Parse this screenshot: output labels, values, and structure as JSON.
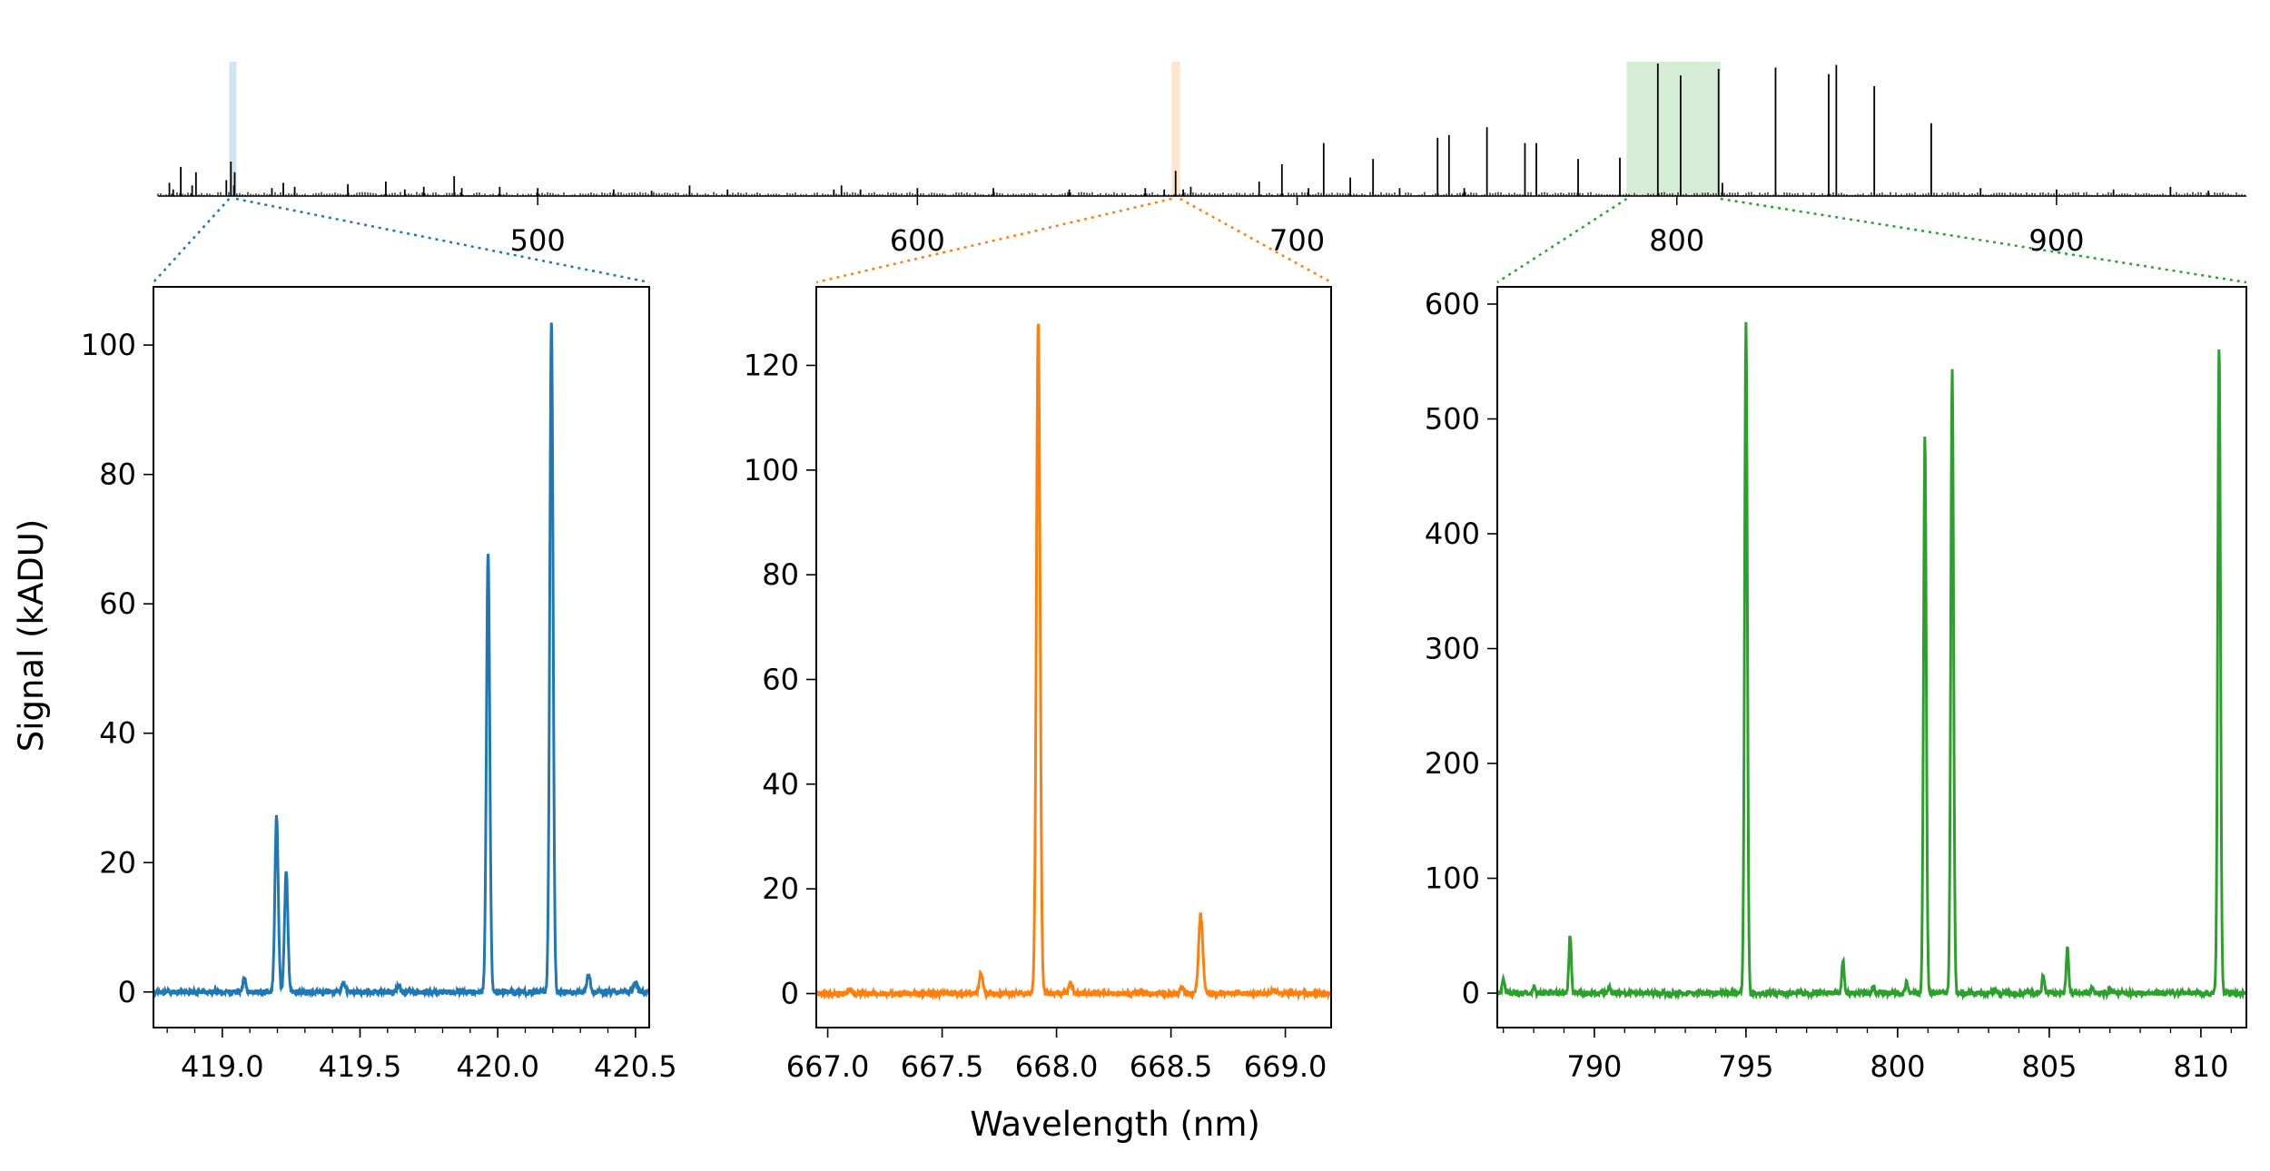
{
  "chart_data": [
    {
      "type": "line",
      "panel": "overview",
      "xlim": [
        400,
        950
      ],
      "x_ticks": [
        500,
        600,
        700,
        800,
        900
      ],
      "highlight_regions": [
        {
          "x": [
            418.75,
            420.55
          ],
          "color": "#1f77b4"
        },
        {
          "x": [
            666.95,
            669.2
          ],
          "color": "#ff7f0e"
        },
        {
          "x": [
            786.8,
            811.5
          ],
          "color": "#2ca02c"
        }
      ],
      "line_color": "#000000",
      "lines": [
        [
          403,
          10
        ],
        [
          404,
          5
        ],
        [
          406,
          22
        ],
        [
          409,
          8
        ],
        [
          410,
          18
        ],
        [
          418,
          12
        ],
        [
          419.2,
          26
        ],
        [
          420,
          8
        ],
        [
          420.2,
          18
        ],
        [
          430,
          6
        ],
        [
          433,
          10
        ],
        [
          436,
          7
        ],
        [
          450,
          9
        ],
        [
          460,
          11
        ],
        [
          465,
          5
        ],
        [
          470,
          7
        ],
        [
          478,
          15
        ],
        [
          480,
          6
        ],
        [
          490,
          7
        ],
        [
          500,
          6
        ],
        [
          520,
          5
        ],
        [
          530,
          4
        ],
        [
          540,
          8
        ],
        [
          550,
          5
        ],
        [
          578,
          5
        ],
        [
          580,
          8
        ],
        [
          585,
          5
        ],
        [
          600,
          6
        ],
        [
          620,
          6
        ],
        [
          640,
          5
        ],
        [
          660,
          6
        ],
        [
          665,
          5
        ],
        [
          668,
          19
        ],
        [
          670,
          5
        ],
        [
          672,
          7
        ],
        [
          690,
          11
        ],
        [
          696,
          24
        ],
        [
          703,
          6
        ],
        [
          707,
          40
        ],
        [
          714,
          14
        ],
        [
          720,
          28
        ],
        [
          727,
          6
        ],
        [
          737,
          44
        ],
        [
          740,
          46
        ],
        [
          744,
          6
        ],
        [
          750,
          52
        ],
        [
          760,
          40
        ],
        [
          763,
          40
        ],
        [
          774,
          28
        ],
        [
          785,
          29
        ],
        [
          795,
          100
        ],
        [
          801,
          91
        ],
        [
          811,
          96
        ],
        [
          812,
          10
        ],
        [
          826,
          97
        ],
        [
          840,
          92
        ],
        [
          842,
          99
        ],
        [
          852,
          83
        ],
        [
          867,
          55
        ],
        [
          880,
          6
        ],
        [
          900,
          5
        ],
        [
          915,
          5
        ],
        [
          930,
          7
        ],
        [
          940,
          4
        ]
      ]
    },
    {
      "type": "line",
      "panel": "zoom-1",
      "color": "#1f77b4",
      "xlim": [
        418.75,
        420.55
      ],
      "ylim": [
        -5.5,
        109
      ],
      "x_ticks": [
        "419.0",
        "419.5",
        "420.0",
        "420.5"
      ],
      "y_ticks": [
        0,
        20,
        40,
        60,
        80,
        100
      ],
      "ylabel": "Signal (kADU)",
      "peaks": [
        {
          "x": 419.08,
          "y": 2.0,
          "w": 0.006
        },
        {
          "x": 419.197,
          "y": 27.2,
          "w": 0.006
        },
        {
          "x": 419.232,
          "y": 18.6,
          "w": 0.006
        },
        {
          "x": 419.44,
          "y": 1.5,
          "w": 0.006
        },
        {
          "x": 419.64,
          "y": 1.0,
          "w": 0.006
        },
        {
          "x": 419.965,
          "y": 68.0,
          "w": 0.006
        },
        {
          "x": 420.195,
          "y": 103.5,
          "w": 0.006
        },
        {
          "x": 420.33,
          "y": 2.8,
          "w": 0.006
        },
        {
          "x": 420.5,
          "y": 1.4,
          "w": 0.006
        }
      ]
    },
    {
      "type": "line",
      "panel": "zoom-2",
      "color": "#ff7f0e",
      "xlim": [
        666.95,
        669.2
      ],
      "ylim": [
        -6.5,
        135
      ],
      "x_ticks": [
        "667.0",
        "667.5",
        "668.0",
        "668.5",
        "669.0"
      ],
      "y_ticks": [
        0,
        20,
        40,
        60,
        80,
        100,
        120
      ],
      "peaks": [
        {
          "x": 667.1,
          "y": 0.8,
          "w": 0.008
        },
        {
          "x": 667.67,
          "y": 3.8,
          "w": 0.008
        },
        {
          "x": 667.92,
          "y": 128.0,
          "w": 0.008
        },
        {
          "x": 668.06,
          "y": 2.0,
          "w": 0.008
        },
        {
          "x": 668.55,
          "y": 1.2,
          "w": 0.008
        },
        {
          "x": 668.63,
          "y": 15.0,
          "w": 0.009
        },
        {
          "x": 668.95,
          "y": 0.6,
          "w": 0.008
        }
      ]
    },
    {
      "type": "line",
      "panel": "zoom-3",
      "color": "#2ca02c",
      "xlim": [
        786.8,
        811.5
      ],
      "ylim": [
        -30,
        615
      ],
      "x_ticks": [
        790,
        795,
        800,
        805,
        810
      ],
      "y_ticks": [
        0,
        100,
        200,
        300,
        400,
        500,
        600
      ],
      "peaks": [
        {
          "x": 787.0,
          "y": 13,
          "w": 0.04
        },
        {
          "x": 788.0,
          "y": 5,
          "w": 0.04
        },
        {
          "x": 789.2,
          "y": 50,
          "w": 0.04
        },
        {
          "x": 790.5,
          "y": 5,
          "w": 0.04
        },
        {
          "x": 795.0,
          "y": 585,
          "w": 0.045
        },
        {
          "x": 798.2,
          "y": 29,
          "w": 0.04
        },
        {
          "x": 799.2,
          "y": 6,
          "w": 0.04
        },
        {
          "x": 800.3,
          "y": 10,
          "w": 0.04
        },
        {
          "x": 800.9,
          "y": 485,
          "w": 0.045
        },
        {
          "x": 801.8,
          "y": 544,
          "w": 0.045
        },
        {
          "x": 803.2,
          "y": 4,
          "w": 0.04
        },
        {
          "x": 804.8,
          "y": 15,
          "w": 0.04
        },
        {
          "x": 805.6,
          "y": 39,
          "w": 0.04
        },
        {
          "x": 806.4,
          "y": 5,
          "w": 0.04
        },
        {
          "x": 807.0,
          "y": 4,
          "w": 0.04
        },
        {
          "x": 810.6,
          "y": 567,
          "w": 0.045
        }
      ]
    }
  ],
  "axes": {
    "xlabel": "Wavelength (nm)",
    "ylabel": "Signal (kADU)"
  }
}
